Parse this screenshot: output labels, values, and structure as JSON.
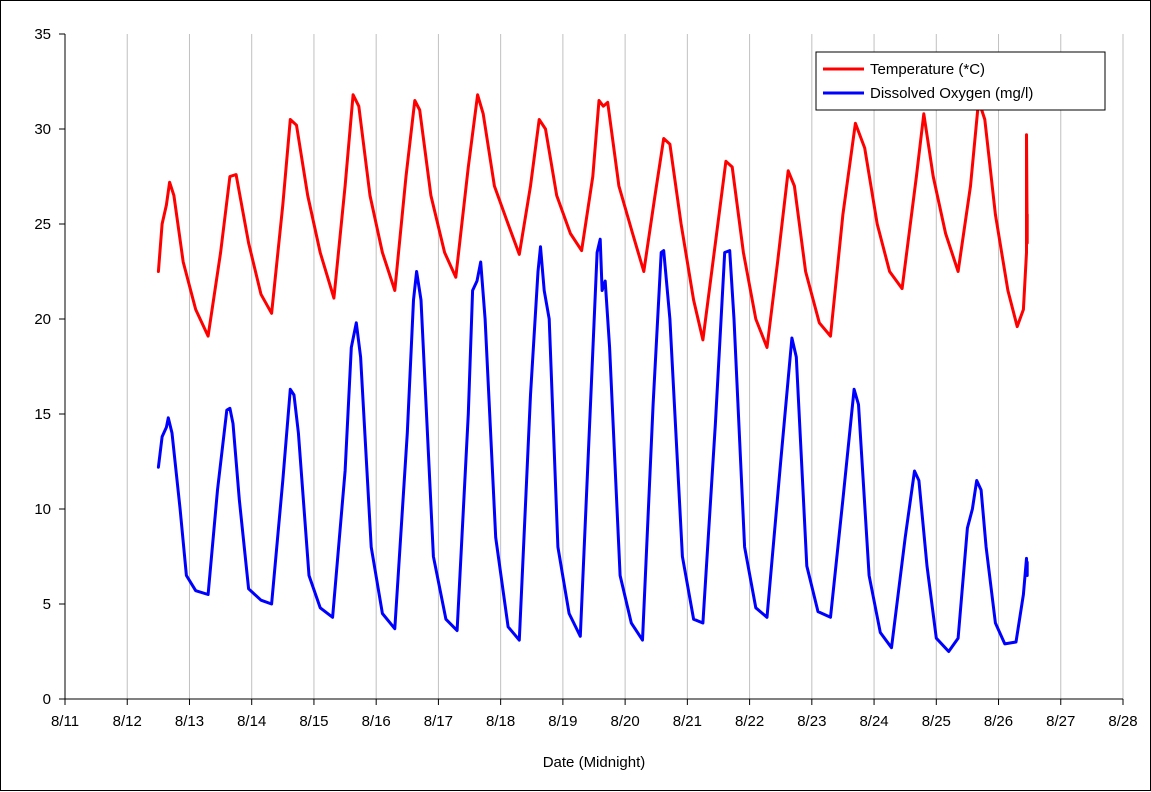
{
  "chart_data": {
    "type": "line",
    "title": "",
    "xlabel": "Date (Midnight)",
    "ylabel": "",
    "x_tick_labels": [
      "8/11",
      "8/12",
      "8/13",
      "8/14",
      "8/15",
      "8/16",
      "8/17",
      "8/18",
      "8/19",
      "8/20",
      "8/21",
      "8/22",
      "8/23",
      "8/24",
      "8/25",
      "8/26",
      "8/27",
      "8/28"
    ],
    "x_range_days": [
      11,
      28
    ],
    "ylim": [
      0,
      35
    ],
    "y_ticks": [
      0,
      5,
      10,
      15,
      20,
      25,
      30,
      35
    ],
    "grid": "vertical",
    "legend_position": "top-right",
    "series": [
      {
        "name": "Temperature (*C)",
        "color": "#ff0000",
        "x_date_days": [
          12.5,
          12.56,
          12.63,
          12.68,
          12.75,
          12.9,
          13.1,
          13.3,
          13.5,
          13.65,
          13.75,
          13.95,
          14.15,
          14.32,
          14.5,
          14.62,
          14.72,
          14.9,
          15.1,
          15.32,
          15.5,
          15.63,
          15.72,
          15.9,
          16.1,
          16.3,
          16.48,
          16.62,
          16.7,
          16.88,
          17.1,
          17.28,
          17.48,
          17.63,
          17.72,
          17.9,
          18.12,
          18.3,
          18.48,
          18.62,
          18.72,
          18.9,
          19.12,
          19.3,
          19.48,
          19.58,
          19.65,
          19.72,
          19.9,
          20.12,
          20.3,
          20.48,
          20.62,
          20.72,
          20.9,
          21.1,
          21.25,
          21.45,
          21.62,
          21.72,
          21.9,
          22.1,
          22.28,
          22.45,
          22.62,
          22.72,
          22.9,
          23.12,
          23.3,
          23.5,
          23.7,
          23.85,
          24.05,
          24.25,
          24.45,
          24.68,
          24.8,
          24.95,
          25.15,
          25.35,
          25.55,
          25.68,
          25.78,
          25.95,
          26.15,
          26.3,
          26.4,
          26.45,
          26.45,
          26.46,
          26.46
        ],
        "values": [
          22.5,
          25.0,
          26.0,
          27.2,
          26.5,
          23.0,
          20.5,
          19.1,
          23.5,
          27.5,
          27.6,
          24.0,
          21.3,
          20.3,
          26.0,
          30.5,
          30.2,
          26.5,
          23.5,
          21.1,
          27.0,
          31.8,
          31.2,
          26.5,
          23.5,
          21.5,
          27.5,
          31.5,
          31.0,
          26.5,
          23.5,
          22.2,
          28.0,
          31.8,
          30.8,
          27.0,
          25.0,
          23.4,
          27.0,
          30.5,
          30.0,
          26.5,
          24.5,
          23.6,
          27.5,
          31.5,
          31.2,
          31.4,
          27.0,
          24.5,
          22.5,
          26.5,
          29.5,
          29.2,
          25.0,
          21.0,
          18.9,
          24.0,
          28.3,
          28.0,
          23.5,
          20.0,
          18.5,
          23.0,
          27.8,
          27.0,
          22.5,
          19.8,
          19.1,
          25.5,
          30.3,
          29.0,
          25.0,
          22.5,
          21.6,
          27.5,
          30.8,
          27.5,
          24.5,
          22.5,
          27.0,
          31.5,
          30.5,
          25.5,
          21.5,
          19.6,
          20.5,
          23.5,
          29.7,
          24.0,
          25.5
        ]
      },
      {
        "name": "Dissolved Oxygen (mg/l)",
        "color": "#0000ff",
        "x_date_days": [
          12.5,
          12.56,
          12.63,
          12.66,
          12.72,
          12.85,
          12.95,
          13.1,
          13.3,
          13.45,
          13.6,
          13.65,
          13.7,
          13.8,
          13.95,
          14.15,
          14.32,
          14.5,
          14.62,
          14.68,
          14.75,
          14.92,
          15.1,
          15.3,
          15.5,
          15.6,
          15.68,
          15.75,
          15.92,
          16.1,
          16.3,
          16.5,
          16.6,
          16.65,
          16.72,
          16.92,
          17.12,
          17.3,
          17.48,
          17.55,
          17.62,
          17.68,
          17.75,
          17.92,
          18.12,
          18.3,
          18.48,
          18.6,
          18.64,
          18.7,
          18.78,
          18.92,
          19.1,
          19.28,
          19.45,
          19.55,
          19.6,
          19.63,
          19.68,
          19.75,
          19.92,
          20.1,
          20.28,
          20.45,
          20.58,
          20.62,
          20.72,
          20.92,
          21.1,
          21.25,
          21.45,
          21.6,
          21.68,
          21.75,
          21.92,
          22.1,
          22.28,
          22.5,
          22.68,
          22.75,
          22.92,
          23.1,
          23.3,
          23.5,
          23.68,
          23.75,
          23.92,
          24.1,
          24.28,
          24.5,
          24.65,
          24.72,
          24.85,
          25.0,
          25.2,
          25.35,
          25.5,
          25.58,
          25.65,
          25.72,
          25.8,
          25.95,
          26.1,
          26.28,
          26.4,
          26.45,
          26.46,
          26.46
        ],
        "values": [
          12.2,
          13.8,
          14.3,
          14.8,
          14.0,
          10.0,
          6.5,
          5.7,
          5.5,
          11.0,
          15.2,
          15.3,
          14.5,
          10.5,
          5.8,
          5.2,
          5.0,
          11.5,
          16.3,
          16.0,
          14.0,
          6.5,
          4.8,
          4.3,
          12.0,
          18.5,
          19.8,
          18.0,
          8.0,
          4.5,
          3.7,
          14.0,
          21.0,
          22.5,
          21.0,
          7.5,
          4.2,
          3.6,
          15.0,
          21.5,
          22.0,
          23.0,
          20.0,
          8.5,
          3.8,
          3.1,
          16.0,
          22.5,
          23.8,
          21.5,
          20.0,
          8.0,
          4.5,
          3.3,
          16.0,
          23.5,
          24.2,
          21.5,
          22.0,
          18.5,
          6.5,
          4.0,
          3.1,
          15.5,
          23.5,
          23.6,
          20.0,
          7.5,
          4.2,
          4.0,
          14.5,
          23.5,
          23.6,
          20.0,
          8.0,
          4.8,
          4.3,
          12.5,
          19.0,
          18.0,
          7.0,
          4.6,
          4.3,
          10.5,
          16.3,
          15.5,
          6.5,
          3.5,
          2.7,
          8.5,
          12.0,
          11.5,
          7.0,
          3.2,
          2.5,
          3.2,
          9.0,
          10.0,
          11.5,
          11.0,
          8.0,
          4.0,
          2.9,
          3.0,
          5.5,
          7.4,
          6.5,
          7.2
        ]
      }
    ]
  }
}
